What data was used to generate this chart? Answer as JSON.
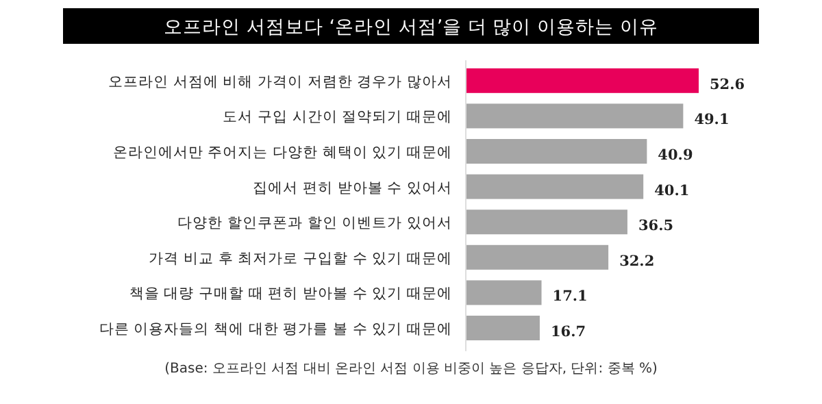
{
  "chart_data": {
    "type": "bar",
    "orientation": "horizontal",
    "title": "오프라인 서점보다 ‘온라인 서점’을 더 많이 이용하는 이유",
    "categories": [
      "오프라인 서점에 비해 가격이 저렴한 경우가 많아서",
      "도서 구입 시간이 절약되기 때문에",
      "온라인에서만 주어지는 다양한 혜택이 있기 때문에",
      "집에서 편히 받아볼 수 있어서",
      "다양한 할인쿠폰과 할인 이벤트가 있어서",
      "가격 비교 후 최저가로 구입할 수 있기 때문에",
      "책을 대량 구매할 때 편히 받아볼 수 있기 때문에",
      "다른 이용자들의 책에 대한 평가를 볼 수 있기 때문에"
    ],
    "values": [
      52.6,
      49.1,
      40.9,
      40.1,
      36.5,
      32.2,
      17.1,
      16.7
    ],
    "colors": [
      "#e8005a",
      "#a6a6a6",
      "#a6a6a6",
      "#a6a6a6",
      "#a6a6a6",
      "#a6a6a6",
      "#a6a6a6",
      "#a6a6a6"
    ],
    "data_labels": true,
    "annotations": [
      "(Base: 오프라인 서점 대비 온라인 서점 이용 비중이 높은 응답자, 단위: 중복 %)"
    ]
  }
}
